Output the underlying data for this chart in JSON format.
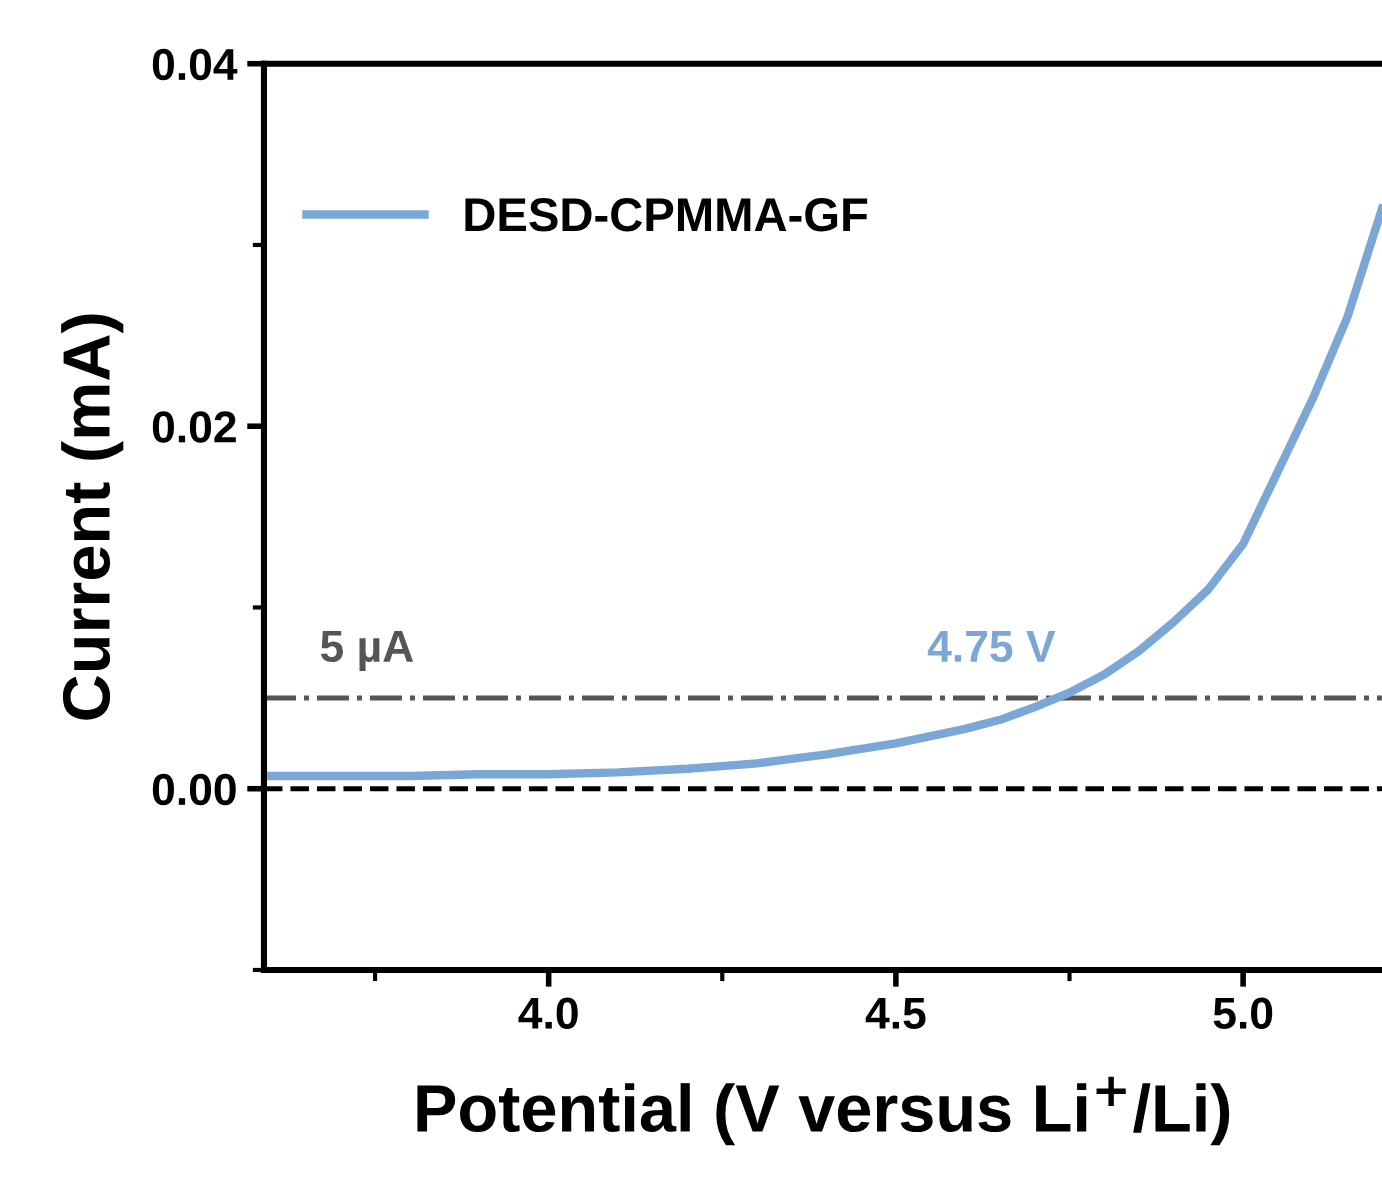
{
  "chart_data": {
    "type": "line",
    "xlabel": "Potential (V versus Li$^{+}$/Li)",
    "ylabel": "Current (mA)",
    "x": [
      3.59,
      3.7,
      3.8,
      3.9,
      4.0,
      4.1,
      4.2,
      4.3,
      4.4,
      4.5,
      4.6,
      4.65,
      4.7,
      4.75,
      4.8,
      4.85,
      4.9,
      4.95,
      5.0,
      5.05,
      5.1,
      5.15,
      5.2
    ],
    "series": [
      {
        "name": "DESD-CPMMA-GF",
        "color": "#7ba7d6",
        "values": [
          0.0007,
          0.0007,
          0.0007,
          0.0008,
          0.0008,
          0.0009,
          0.0011,
          0.0014,
          0.0019,
          0.0025,
          0.0033,
          0.0038,
          0.0045,
          0.0053,
          0.0063,
          0.0076,
          0.0092,
          0.011,
          0.0135,
          0.0175,
          0.0215,
          0.026,
          0.032
        ]
      }
    ],
    "xlim": [
      3.59,
      5.2
    ],
    "ylim": [
      -0.01,
      0.04
    ],
    "xticks": [
      {
        "value": 4.0,
        "label": "4.0"
      },
      {
        "value": 4.5,
        "label": "4.5"
      },
      {
        "value": 5.0,
        "label": "5.0"
      }
    ],
    "yticks": [
      {
        "value": 0.0,
        "label": "0.00"
      },
      {
        "value": 0.02,
        "label": "0.02"
      },
      {
        "value": 0.04,
        "label": "0.04"
      }
    ],
    "ref_lines": [
      {
        "axis": "y",
        "value": 0.005,
        "label": "5 µA",
        "color": "#555555",
        "line_style": "dashdot"
      },
      {
        "axis": "y",
        "value": 0,
        "color": "#000000",
        "line_style": "dashed"
      }
    ],
    "annotations": [
      {
        "text": "4.75 V",
        "x": 4.75,
        "y": 0.005
      }
    ],
    "legend": "top left",
    "grid": false,
    "marker": "none",
    "line_style": "solid"
  }
}
